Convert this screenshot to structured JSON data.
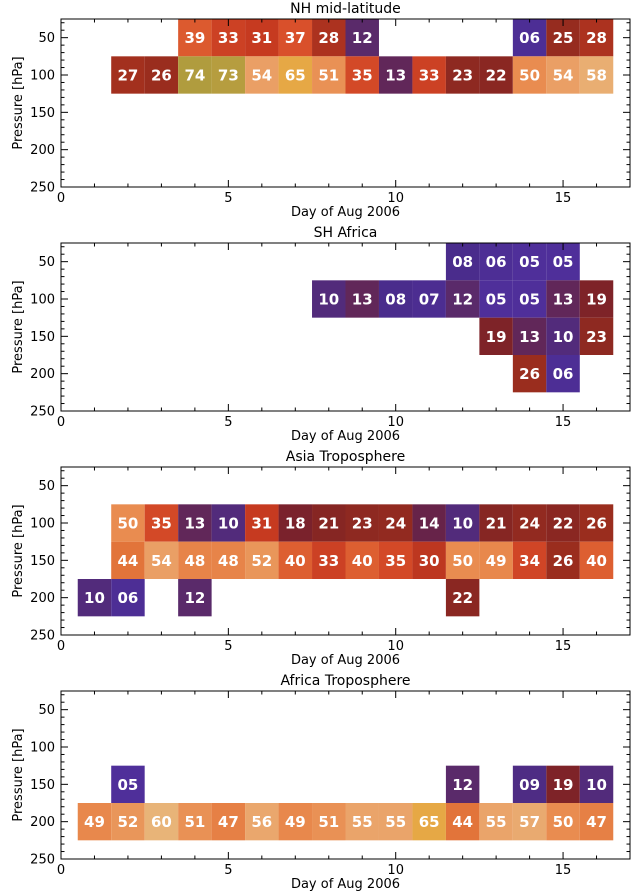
{
  "chart_data": [
    {
      "type": "heatmap",
      "title": "NH mid-latitude",
      "xlabel": "Day of Aug 2006",
      "ylabel": "Pressure [hPa]",
      "xlim": [
        0,
        17
      ],
      "ylim": [
        250,
        25
      ],
      "xticks": [
        0,
        5,
        10,
        15
      ],
      "yticks": [
        50,
        100,
        150,
        200,
        250
      ],
      "cells": [
        {
          "day": 4,
          "p": 50,
          "v": "39"
        },
        {
          "day": 5,
          "p": 50,
          "v": "33"
        },
        {
          "day": 6,
          "p": 50,
          "v": "31"
        },
        {
          "day": 7,
          "p": 50,
          "v": "37"
        },
        {
          "day": 8,
          "p": 50,
          "v": "28"
        },
        {
          "day": 9,
          "p": 50,
          "v": "12"
        },
        {
          "day": 14,
          "p": 50,
          "v": "06"
        },
        {
          "day": 15,
          "p": 50,
          "v": "25"
        },
        {
          "day": 16,
          "p": 50,
          "v": "28"
        },
        {
          "day": 2,
          "p": 100,
          "v": "27"
        },
        {
          "day": 3,
          "p": 100,
          "v": "26"
        },
        {
          "day": 4,
          "p": 100,
          "v": "74"
        },
        {
          "day": 5,
          "p": 100,
          "v": "73"
        },
        {
          "day": 6,
          "p": 100,
          "v": "54"
        },
        {
          "day": 7,
          "p": 100,
          "v": "65"
        },
        {
          "day": 8,
          "p": 100,
          "v": "51"
        },
        {
          "day": 9,
          "p": 100,
          "v": "35"
        },
        {
          "day": 10,
          "p": 100,
          "v": "13"
        },
        {
          "day": 11,
          "p": 100,
          "v": "33"
        },
        {
          "day": 12,
          "p": 100,
          "v": "23"
        },
        {
          "day": 13,
          "p": 100,
          "v": "22"
        },
        {
          "day": 14,
          "p": 100,
          "v": "50"
        },
        {
          "day": 15,
          "p": 100,
          "v": "54"
        },
        {
          "day": 16,
          "p": 100,
          "v": "58"
        }
      ]
    },
    {
      "type": "heatmap",
      "title": "SH Africa",
      "xlabel": "Day of Aug 2006",
      "ylabel": "Pressure [hPa]",
      "xlim": [
        0,
        17
      ],
      "ylim": [
        250,
        25
      ],
      "xticks": [
        0,
        5,
        10,
        15
      ],
      "yticks": [
        50,
        100,
        150,
        200,
        250
      ],
      "cells": [
        {
          "day": 12,
          "p": 50,
          "v": "08"
        },
        {
          "day": 13,
          "p": 50,
          "v": "06"
        },
        {
          "day": 14,
          "p": 50,
          "v": "05"
        },
        {
          "day": 15,
          "p": 50,
          "v": "05"
        },
        {
          "day": 8,
          "p": 100,
          "v": "10"
        },
        {
          "day": 9,
          "p": 100,
          "v": "13"
        },
        {
          "day": 10,
          "p": 100,
          "v": "08"
        },
        {
          "day": 11,
          "p": 100,
          "v": "07"
        },
        {
          "day": 12,
          "p": 100,
          "v": "12"
        },
        {
          "day": 13,
          "p": 100,
          "v": "05"
        },
        {
          "day": 14,
          "p": 100,
          "v": "05"
        },
        {
          "day": 15,
          "p": 100,
          "v": "13"
        },
        {
          "day": 16,
          "p": 100,
          "v": "19"
        },
        {
          "day": 13,
          "p": 150,
          "v": "19"
        },
        {
          "day": 14,
          "p": 150,
          "v": "13"
        },
        {
          "day": 15,
          "p": 150,
          "v": "10"
        },
        {
          "day": 16,
          "p": 150,
          "v": "23"
        },
        {
          "day": 14,
          "p": 200,
          "v": "26"
        },
        {
          "day": 15,
          "p": 200,
          "v": "06"
        }
      ]
    },
    {
      "type": "heatmap",
      "title": "Asia Troposphere",
      "xlabel": "Day of Aug 2006",
      "ylabel": "Pressure [hPa]",
      "xlim": [
        0,
        17
      ],
      "ylim": [
        250,
        25
      ],
      "xticks": [
        0,
        5,
        10,
        15
      ],
      "yticks": [
        50,
        100,
        150,
        200,
        250
      ],
      "cells": [
        {
          "day": 2,
          "p": 100,
          "v": "50"
        },
        {
          "day": 3,
          "p": 100,
          "v": "35"
        },
        {
          "day": 4,
          "p": 100,
          "v": "13"
        },
        {
          "day": 5,
          "p": 100,
          "v": "10"
        },
        {
          "day": 6,
          "p": 100,
          "v": "31"
        },
        {
          "day": 7,
          "p": 100,
          "v": "18"
        },
        {
          "day": 8,
          "p": 100,
          "v": "21"
        },
        {
          "day": 9,
          "p": 100,
          "v": "23"
        },
        {
          "day": 10,
          "p": 100,
          "v": "24"
        },
        {
          "day": 11,
          "p": 100,
          "v": "14"
        },
        {
          "day": 12,
          "p": 100,
          "v": "10"
        },
        {
          "day": 13,
          "p": 100,
          "v": "21"
        },
        {
          "day": 14,
          "p": 100,
          "v": "24"
        },
        {
          "day": 15,
          "p": 100,
          "v": "22"
        },
        {
          "day": 16,
          "p": 100,
          "v": "26"
        },
        {
          "day": 2,
          "p": 150,
          "v": "44"
        },
        {
          "day": 3,
          "p": 150,
          "v": "54"
        },
        {
          "day": 4,
          "p": 150,
          "v": "48"
        },
        {
          "day": 5,
          "p": 150,
          "v": "48"
        },
        {
          "day": 6,
          "p": 150,
          "v": "52"
        },
        {
          "day": 7,
          "p": 150,
          "v": "40"
        },
        {
          "day": 8,
          "p": 150,
          "v": "33"
        },
        {
          "day": 9,
          "p": 150,
          "v": "40"
        },
        {
          "day": 10,
          "p": 150,
          "v": "35"
        },
        {
          "day": 11,
          "p": 150,
          "v": "30"
        },
        {
          "day": 12,
          "p": 150,
          "v": "50"
        },
        {
          "day": 13,
          "p": 150,
          "v": "49"
        },
        {
          "day": 14,
          "p": 150,
          "v": "34"
        },
        {
          "day": 15,
          "p": 150,
          "v": "26"
        },
        {
          "day": 16,
          "p": 150,
          "v": "40"
        },
        {
          "day": 1,
          "p": 200,
          "v": "10"
        },
        {
          "day": 2,
          "p": 200,
          "v": "06"
        },
        {
          "day": 4,
          "p": 200,
          "v": "12"
        },
        {
          "day": 12,
          "p": 200,
          "v": "22"
        }
      ]
    },
    {
      "type": "heatmap",
      "title": "Africa Troposphere",
      "xlabel": "Day of Aug 2006",
      "ylabel": "Pressure [hPa]",
      "xlim": [
        0,
        17
      ],
      "ylim": [
        250,
        25
      ],
      "xticks": [
        0,
        5,
        10,
        15
      ],
      "yticks": [
        50,
        100,
        150,
        200,
        250
      ],
      "cells": [
        {
          "day": 2,
          "p": 150,
          "v": "05"
        },
        {
          "day": 12,
          "p": 150,
          "v": "12"
        },
        {
          "day": 14,
          "p": 150,
          "v": "09"
        },
        {
          "day": 15,
          "p": 150,
          "v": "19"
        },
        {
          "day": 16,
          "p": 150,
          "v": "10"
        },
        {
          "day": 1,
          "p": 200,
          "v": "49"
        },
        {
          "day": 2,
          "p": 200,
          "v": "52"
        },
        {
          "day": 3,
          "p": 200,
          "v": "60"
        },
        {
          "day": 4,
          "p": 200,
          "v": "51"
        },
        {
          "day": 5,
          "p": 200,
          "v": "47"
        },
        {
          "day": 6,
          "p": 200,
          "v": "56"
        },
        {
          "day": 7,
          "p": 200,
          "v": "49"
        },
        {
          "day": 8,
          "p": 200,
          "v": "51"
        },
        {
          "day": 9,
          "p": 200,
          "v": "55"
        },
        {
          "day": 10,
          "p": 200,
          "v": "55"
        },
        {
          "day": 11,
          "p": 200,
          "v": "65"
        },
        {
          "day": 12,
          "p": 200,
          "v": "44"
        },
        {
          "day": 13,
          "p": 200,
          "v": "55"
        },
        {
          "day": 14,
          "p": 200,
          "v": "57"
        },
        {
          "day": 15,
          "p": 200,
          "v": "50"
        },
        {
          "day": 16,
          "p": 200,
          "v": "47"
        }
      ]
    }
  ],
  "colors": {
    "scale": [
      {
        "v": 5,
        "c": "#4f2f9a"
      },
      {
        "v": 8,
        "c": "#4a2c8c"
      },
      {
        "v": 12,
        "c": "#5a2a6a"
      },
      {
        "v": 15,
        "c": "#6e2038"
      },
      {
        "v": 20,
        "c": "#822424"
      },
      {
        "v": 26,
        "c": "#9a2d1e"
      },
      {
        "v": 31,
        "c": "#c63a20"
      },
      {
        "v": 37,
        "c": "#d9502b"
      },
      {
        "v": 44,
        "c": "#e2743a"
      },
      {
        "v": 50,
        "c": "#e98c50"
      },
      {
        "v": 55,
        "c": "#eaa46a"
      },
      {
        "v": 60,
        "c": "#e8b478"
      },
      {
        "v": 65,
        "c": "#e6a845"
      },
      {
        "v": 74,
        "c": "#b09c3e"
      }
    ],
    "axis": "#000000",
    "cell_text": "#ffffff"
  }
}
